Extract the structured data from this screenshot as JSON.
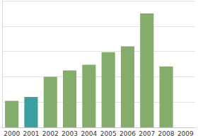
{
  "chart_data": {
    "type": "bar",
    "categories": [
      "2000",
      "2001",
      "2002",
      "2003",
      "2004",
      "2005",
      "2006",
      "2007",
      "2008",
      "2009"
    ],
    "values": [
      1.05,
      1.2,
      2.0,
      2.25,
      2.47,
      2.97,
      3.2,
      4.5,
      2.4,
      null
    ],
    "colors": [
      "#84ad6b",
      "#3a9f9f",
      "#84ad6b",
      "#84ad6b",
      "#84ad6b",
      "#84ad6b",
      "#84ad6b",
      "#84ad6b",
      "#84ad6b",
      "#84ad6b"
    ],
    "ylim": [
      0,
      5
    ],
    "yticks": [
      0,
      1,
      2,
      3,
      4,
      5
    ],
    "grid": true,
    "tick_labels": "x"
  }
}
